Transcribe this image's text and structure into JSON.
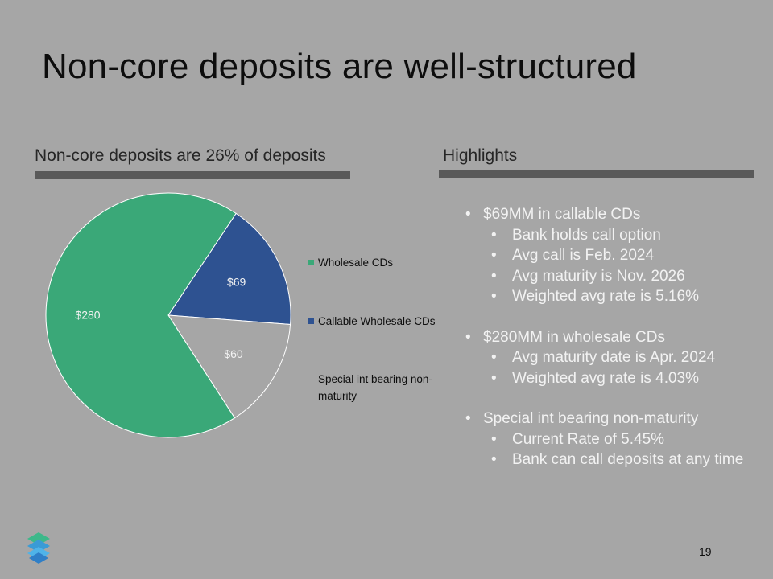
{
  "slide": {
    "title": "Non-core deposits are well-structured",
    "chart_heading": "Non-core deposits are 26% of deposits",
    "highlights_heading": "Highlights",
    "page_number": "19"
  },
  "highlights": [
    {
      "text": "$69MM in callable CDs",
      "subs": [
        "Bank holds call option",
        "Avg call is Feb. 2024",
        "Avg maturity is Nov. 2026",
        "Weighted avg rate is 5.16%"
      ]
    },
    {
      "text": "$280MM in wholesale CDs",
      "subs": [
        "Avg maturity date is Apr. 2024",
        "Weighted avg rate is 4.03%"
      ]
    },
    {
      "text": "Special int bearing non-maturity",
      "subs": [
        "Current Rate of 5.45%",
        "Bank can call deposits at any time"
      ]
    }
  ],
  "chart_data": {
    "type": "pie",
    "title": "Non-core deposits are 26% of deposits",
    "categories": [
      "Wholesale CDs",
      "Callable Wholesale CDs",
      "Special int bearing non-maturity"
    ],
    "values": [
      280,
      69,
      60
    ],
    "data_labels": [
      "$280",
      "$69",
      "$60"
    ],
    "colors": [
      "#3aa878",
      "#2e5291",
      "#a6a6a6"
    ],
    "legend_position": "right"
  },
  "colors": {
    "background": "#a6a6a6",
    "rule": "#595959",
    "bullet_text": "#f2f2f2"
  }
}
